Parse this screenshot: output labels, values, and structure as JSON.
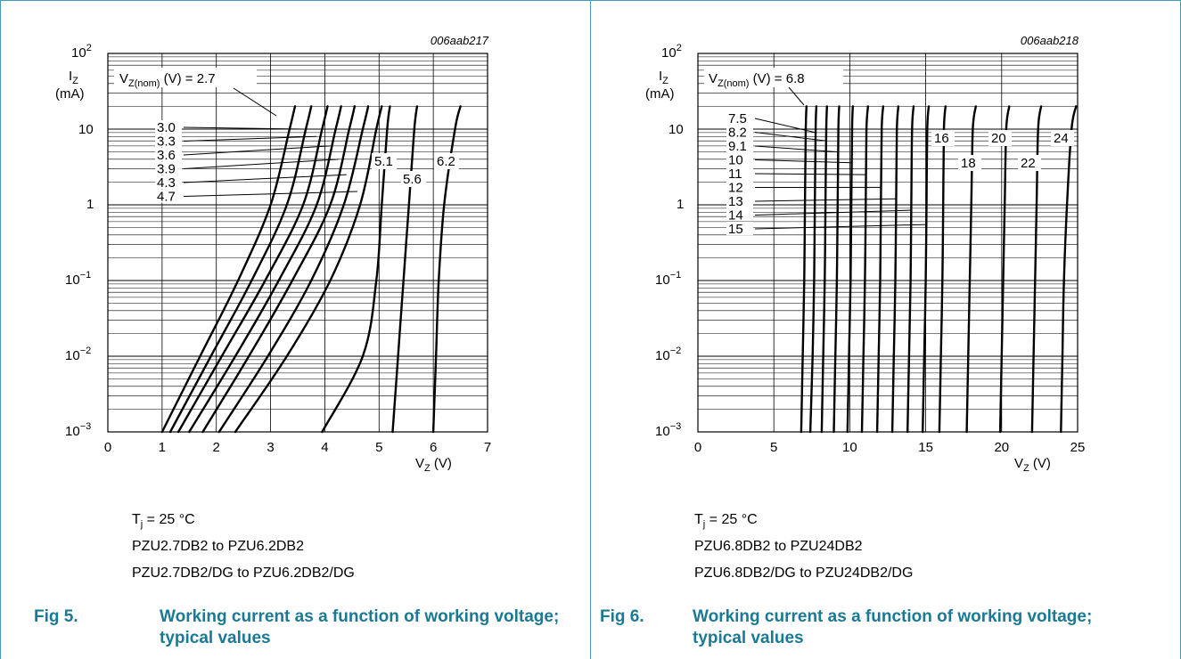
{
  "accent_color": "#1b7a93",
  "figures": [
    {
      "code": "006aab217",
      "conditions": [
        "T_j = 25 °C",
        "PZU2.7DB2 to PZU6.2DB2",
        "PZU2.7DB2/DG to PZU6.2DB2/DG"
      ],
      "fig_number": "Fig 5.",
      "fig_title": "Working current as a function of working voltage; typical values"
    },
    {
      "code": "006aab218",
      "conditions": [
        "T_j = 25 °C",
        "PZU6.8DB2 to PZU24DB2",
        "PZU6.8DB2/DG to PZU24DB2/DG"
      ],
      "fig_number": "Fig 6.",
      "fig_title": "Working current as a function of working voltage; typical values"
    }
  ],
  "chart_data": [
    {
      "type": "line",
      "y_scale": "log",
      "xlim": [
        0,
        7
      ],
      "ylim": [
        0.001,
        100
      ],
      "x_ticks": [
        "0",
        "1",
        "2",
        "3",
        "4",
        "5",
        "6",
        "7"
      ],
      "y_ticks": [
        "10^-3",
        "10^-2",
        "10^-1",
        "1",
        "10",
        "10^2"
      ],
      "xlabel": "V_Z (V)",
      "ylabel": "I_Z (mA)",
      "grid": true,
      "legend_header": "V_Z(nom) (V) = 2.7",
      "series_labels": [
        "3.0",
        "3.3",
        "3.6",
        "3.9",
        "4.3",
        "4.7",
        "5.1",
        "5.6",
        "6.2"
      ],
      "series": [
        {
          "name": "2.7",
          "x": [
            1.0,
            1.7,
            2.4,
            3.0,
            3.35,
            3.45
          ],
          "y": [
            0.001,
            0.01,
            0.1,
            1,
            10,
            20
          ]
        },
        {
          "name": "3.0",
          "x": [
            1.15,
            1.9,
            2.65,
            3.3,
            3.65,
            3.75
          ],
          "y": [
            0.001,
            0.01,
            0.1,
            1,
            10,
            20
          ]
        },
        {
          "name": "3.3",
          "x": [
            1.3,
            2.1,
            2.9,
            3.6,
            3.95,
            4.05
          ],
          "y": [
            0.001,
            0.01,
            0.1,
            1,
            10,
            20
          ]
        },
        {
          "name": "3.6",
          "x": [
            1.5,
            2.35,
            3.15,
            3.85,
            4.2,
            4.3
          ],
          "y": [
            0.001,
            0.01,
            0.1,
            1,
            10,
            20
          ]
        },
        {
          "name": "3.9",
          "x": [
            1.75,
            2.6,
            3.4,
            4.1,
            4.45,
            4.55
          ],
          "y": [
            0.001,
            0.01,
            0.1,
            1,
            10,
            20
          ]
        },
        {
          "name": "4.3",
          "x": [
            2.05,
            2.95,
            3.75,
            4.35,
            4.7,
            4.8
          ],
          "y": [
            0.001,
            0.01,
            0.1,
            1,
            10,
            20
          ]
        },
        {
          "name": "4.7",
          "x": [
            2.35,
            3.3,
            4.1,
            4.65,
            4.95,
            5.05
          ],
          "y": [
            0.001,
            0.01,
            0.1,
            1,
            10,
            20
          ]
        },
        {
          "name": "5.1",
          "x": [
            3.95,
            4.7,
            4.95,
            5.05,
            5.15,
            5.2
          ],
          "y": [
            0.001,
            0.01,
            0.1,
            1,
            10,
            20
          ]
        },
        {
          "name": "5.6",
          "x": [
            5.25,
            5.35,
            5.45,
            5.55,
            5.65,
            5.7
          ],
          "y": [
            0.001,
            0.01,
            0.1,
            1,
            10,
            20
          ]
        },
        {
          "name": "6.2",
          "x": [
            6.0,
            6.05,
            6.1,
            6.2,
            6.4,
            6.5
          ],
          "y": [
            0.001,
            0.01,
            0.1,
            1,
            10,
            20
          ]
        }
      ]
    },
    {
      "type": "line",
      "y_scale": "log",
      "xlim": [
        0,
        25
      ],
      "ylim": [
        0.001,
        100
      ],
      "x_ticks": [
        "0",
        "5",
        "10",
        "15",
        "20",
        "25"
      ],
      "y_ticks": [
        "10^-3",
        "10^-2",
        "10^-1",
        "1",
        "10",
        "10^2"
      ],
      "xlabel": "V_Z (V)",
      "ylabel": "I_Z (mA)",
      "grid": true,
      "legend_header": "V_Z(nom) (V) = 6.8",
      "series_labels": [
        "7.5",
        "8.2",
        "9.1",
        "10",
        "11",
        "12",
        "13",
        "14",
        "15",
        "16",
        "18",
        "20",
        "22",
        "24"
      ],
      "series": [
        {
          "name": "6.8",
          "x": [
            6.8,
            6.9,
            7.0,
            7.05,
            7.1,
            7.15
          ],
          "y": [
            0.001,
            0.01,
            0.1,
            1,
            10,
            20
          ]
        },
        {
          "name": "7.5",
          "x": [
            7.4,
            7.55,
            7.65,
            7.7,
            7.75,
            7.8
          ],
          "y": [
            0.001,
            0.01,
            0.1,
            1,
            10,
            20
          ]
        },
        {
          "name": "8.2",
          "x": [
            8.15,
            8.25,
            8.35,
            8.4,
            8.45,
            8.5
          ],
          "y": [
            0.001,
            0.01,
            0.1,
            1,
            10,
            20
          ]
        },
        {
          "name": "9.1",
          "x": [
            8.95,
            9.05,
            9.15,
            9.2,
            9.25,
            9.3
          ],
          "y": [
            0.001,
            0.01,
            0.1,
            1,
            10,
            20
          ]
        },
        {
          "name": "10",
          "x": [
            9.85,
            9.95,
            10.05,
            10.1,
            10.15,
            10.2
          ],
          "y": [
            0.001,
            0.01,
            0.1,
            1,
            10,
            20
          ]
        },
        {
          "name": "11",
          "x": [
            10.8,
            10.9,
            11.0,
            11.05,
            11.1,
            11.2
          ],
          "y": [
            0.001,
            0.01,
            0.1,
            1,
            10,
            20
          ]
        },
        {
          "name": "12",
          "x": [
            11.8,
            11.9,
            12.0,
            12.05,
            12.1,
            12.2
          ],
          "y": [
            0.001,
            0.01,
            0.1,
            1,
            10,
            20
          ]
        },
        {
          "name": "13",
          "x": [
            12.8,
            12.9,
            13.0,
            13.05,
            13.1,
            13.2
          ],
          "y": [
            0.001,
            0.01,
            0.1,
            1,
            10,
            20
          ]
        },
        {
          "name": "14",
          "x": [
            13.8,
            13.9,
            14.0,
            14.05,
            14.1,
            14.2
          ],
          "y": [
            0.001,
            0.01,
            0.1,
            1,
            10,
            20
          ]
        },
        {
          "name": "15",
          "x": [
            14.8,
            14.9,
            15.0,
            15.05,
            15.1,
            15.2
          ],
          "y": [
            0.001,
            0.01,
            0.1,
            1,
            10,
            20
          ]
        },
        {
          "name": "16",
          "x": [
            15.9,
            16.0,
            16.1,
            16.15,
            16.2,
            16.3
          ],
          "y": [
            0.001,
            0.01,
            0.1,
            1,
            10,
            20
          ]
        },
        {
          "name": "18",
          "x": [
            17.7,
            17.8,
            17.9,
            18.0,
            18.1,
            18.3
          ],
          "y": [
            0.001,
            0.01,
            0.1,
            1,
            10,
            20
          ]
        },
        {
          "name": "20",
          "x": [
            19.9,
            20.0,
            20.1,
            20.2,
            20.3,
            20.5
          ],
          "y": [
            0.001,
            0.01,
            0.1,
            1,
            10,
            20
          ]
        },
        {
          "name": "22",
          "x": [
            22.0,
            22.1,
            22.2,
            22.3,
            22.4,
            22.6
          ],
          "y": [
            0.001,
            0.01,
            0.1,
            1,
            10,
            20
          ]
        },
        {
          "name": "24",
          "x": [
            23.9,
            24.0,
            24.1,
            24.3,
            24.6,
            24.9
          ],
          "y": [
            0.001,
            0.01,
            0.1,
            1,
            10,
            20
          ]
        }
      ]
    }
  ]
}
